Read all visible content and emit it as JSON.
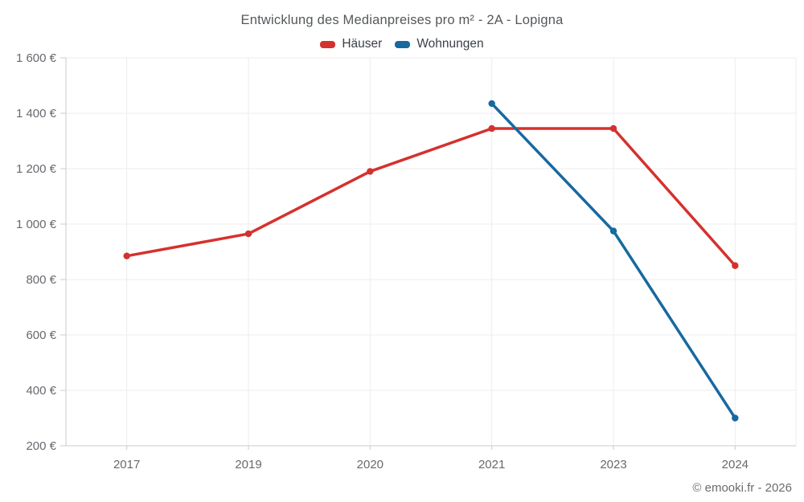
{
  "chart_data": {
    "type": "line",
    "title": "Entwicklung des Medianpreises pro m² - 2A - Lopigna",
    "categories": [
      "2017",
      "2019",
      "2020",
      "2021",
      "2023",
      "2024"
    ],
    "series": [
      {
        "name": "Häuser",
        "color": "#d5312e",
        "values": [
          885,
          965,
          1190,
          1345,
          1345,
          850
        ]
      },
      {
        "name": "Wohnungen",
        "color": "#1769a0",
        "values": [
          null,
          null,
          null,
          1435,
          975,
          300
        ]
      }
    ],
    "ylabel": "",
    "xlabel": "",
    "ylim": [
      200,
      1600
    ],
    "ytick_step": 200,
    "ytick_labels": [
      "200 €",
      "400 €",
      "600 €",
      "800 €",
      "1 000 €",
      "1 200 €",
      "1 400 €",
      "1 600 €"
    ],
    "grid": true,
    "legend_position": "top",
    "copyright": "© emooki.fr - 2026"
  },
  "colors": {
    "grid": "#ededed",
    "axis": "#cbcbcb",
    "tick_text": "#66696e",
    "title_text": "#54585c"
  }
}
